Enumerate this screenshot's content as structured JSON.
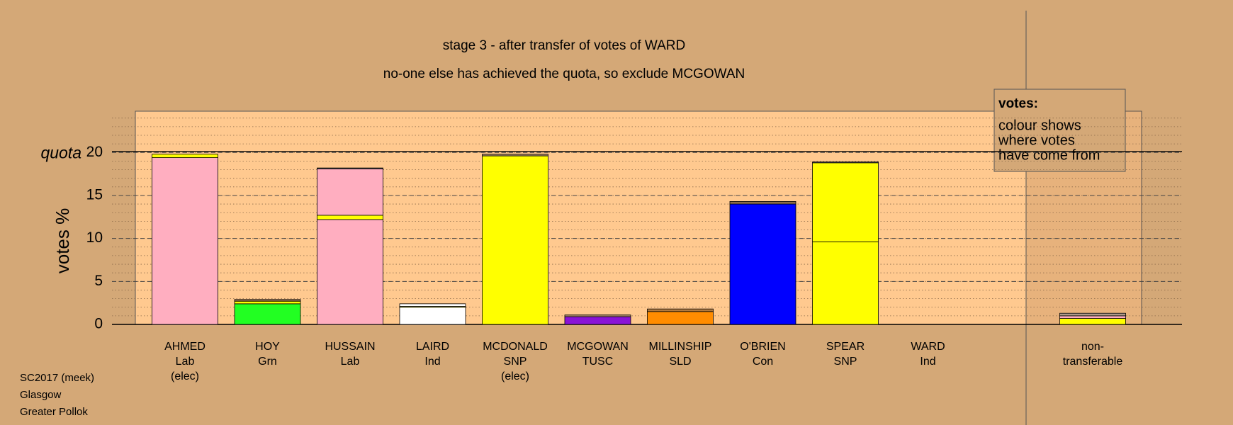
{
  "chart_data": {
    "type": "stacked-bar",
    "title": "stage 3 - after transfer of votes of WARD",
    "subtitle": "no-one else has achieved the quota, so exclude MCGOWAN",
    "y_label": "votes %",
    "quota_label": "quota",
    "quota": 20,
    "ylim": [
      0,
      24.8
    ],
    "yticks": [
      0,
      5,
      10,
      15,
      20
    ],
    "minor_grid_step": 1,
    "grid": true,
    "legend": {
      "title": "votes:",
      "lines": [
        "colour shows",
        "where votes",
        "have come from"
      ]
    },
    "footer": [
      "SC2017 (meek)",
      "Glasgow",
      "Greater Pollok"
    ],
    "categories": [
      {
        "lines": [
          "AHMED",
          "Lab",
          "(elec)"
        ],
        "segments": [
          {
            "value": 19.4,
            "color": "#ffaec0"
          },
          {
            "value": 0.4,
            "color": "#ffff00"
          }
        ]
      },
      {
        "lines": [
          "HOY",
          "Grn"
        ],
        "segments": [
          {
            "value": 2.4,
            "color": "#22ff22"
          },
          {
            "value": 0.3,
            "color": "#ffff00"
          },
          {
            "value": 0.2,
            "color": "#8a6a4a"
          }
        ]
      },
      {
        "lines": [
          "HUSSAIN",
          "Lab"
        ],
        "segments": [
          {
            "value": 12.2,
            "color": "#ffaec0"
          },
          {
            "value": 0.5,
            "color": "#ffff00"
          },
          {
            "value": 5.4,
            "color": "#ffaec0"
          },
          {
            "value": 0.1,
            "color": "#555555"
          }
        ]
      },
      {
        "lines": [
          "LAIRD",
          "Ind"
        ],
        "segments": [
          {
            "value": 2.0,
            "color": "#ffffff"
          },
          {
            "value": 0.1,
            "color": "#ffff00"
          },
          {
            "value": 0.3,
            "color": "#ffffff"
          }
        ]
      },
      {
        "lines": [
          "MCDONALD",
          "SNP",
          "(elec)"
        ],
        "segments": [
          {
            "value": 19.6,
            "color": "#ffff00"
          },
          {
            "value": 0.2,
            "color": "#a08060"
          }
        ]
      },
      {
        "lines": [
          "MCGOWAN",
          "TUSC"
        ],
        "segments": [
          {
            "value": 0.9,
            "color": "#8a12d6"
          },
          {
            "value": 0.2,
            "color": "#a08060"
          }
        ]
      },
      {
        "lines": [
          "MILLINSHIP",
          "SLD"
        ],
        "segments": [
          {
            "value": 1.5,
            "color": "#ff8c00"
          },
          {
            "value": 0.3,
            "color": "#b07a40"
          }
        ]
      },
      {
        "lines": [
          "O'BRIEN",
          "Con"
        ],
        "segments": [
          {
            "value": 14.0,
            "color": "#0000ff"
          },
          {
            "value": 0.3,
            "color": "#8a6a4a"
          }
        ]
      },
      {
        "lines": [
          "SPEAR",
          "SNP"
        ],
        "segments": [
          {
            "value": 9.6,
            "color": "#ffff00"
          },
          {
            "value": 9.2,
            "color": "#ffff00"
          },
          {
            "value": 0.1,
            "color": "#555555"
          }
        ]
      },
      {
        "lines": [
          "WARD",
          "Ind"
        ],
        "segments": []
      },
      {
        "lines": [
          "non-",
          "transferable"
        ],
        "segments": [
          {
            "value": 0.7,
            "color": "#ffff00"
          },
          {
            "value": 0.3,
            "color": "#ffaec0"
          },
          {
            "value": 0.3,
            "color": "#b09a8a"
          }
        ]
      }
    ]
  }
}
